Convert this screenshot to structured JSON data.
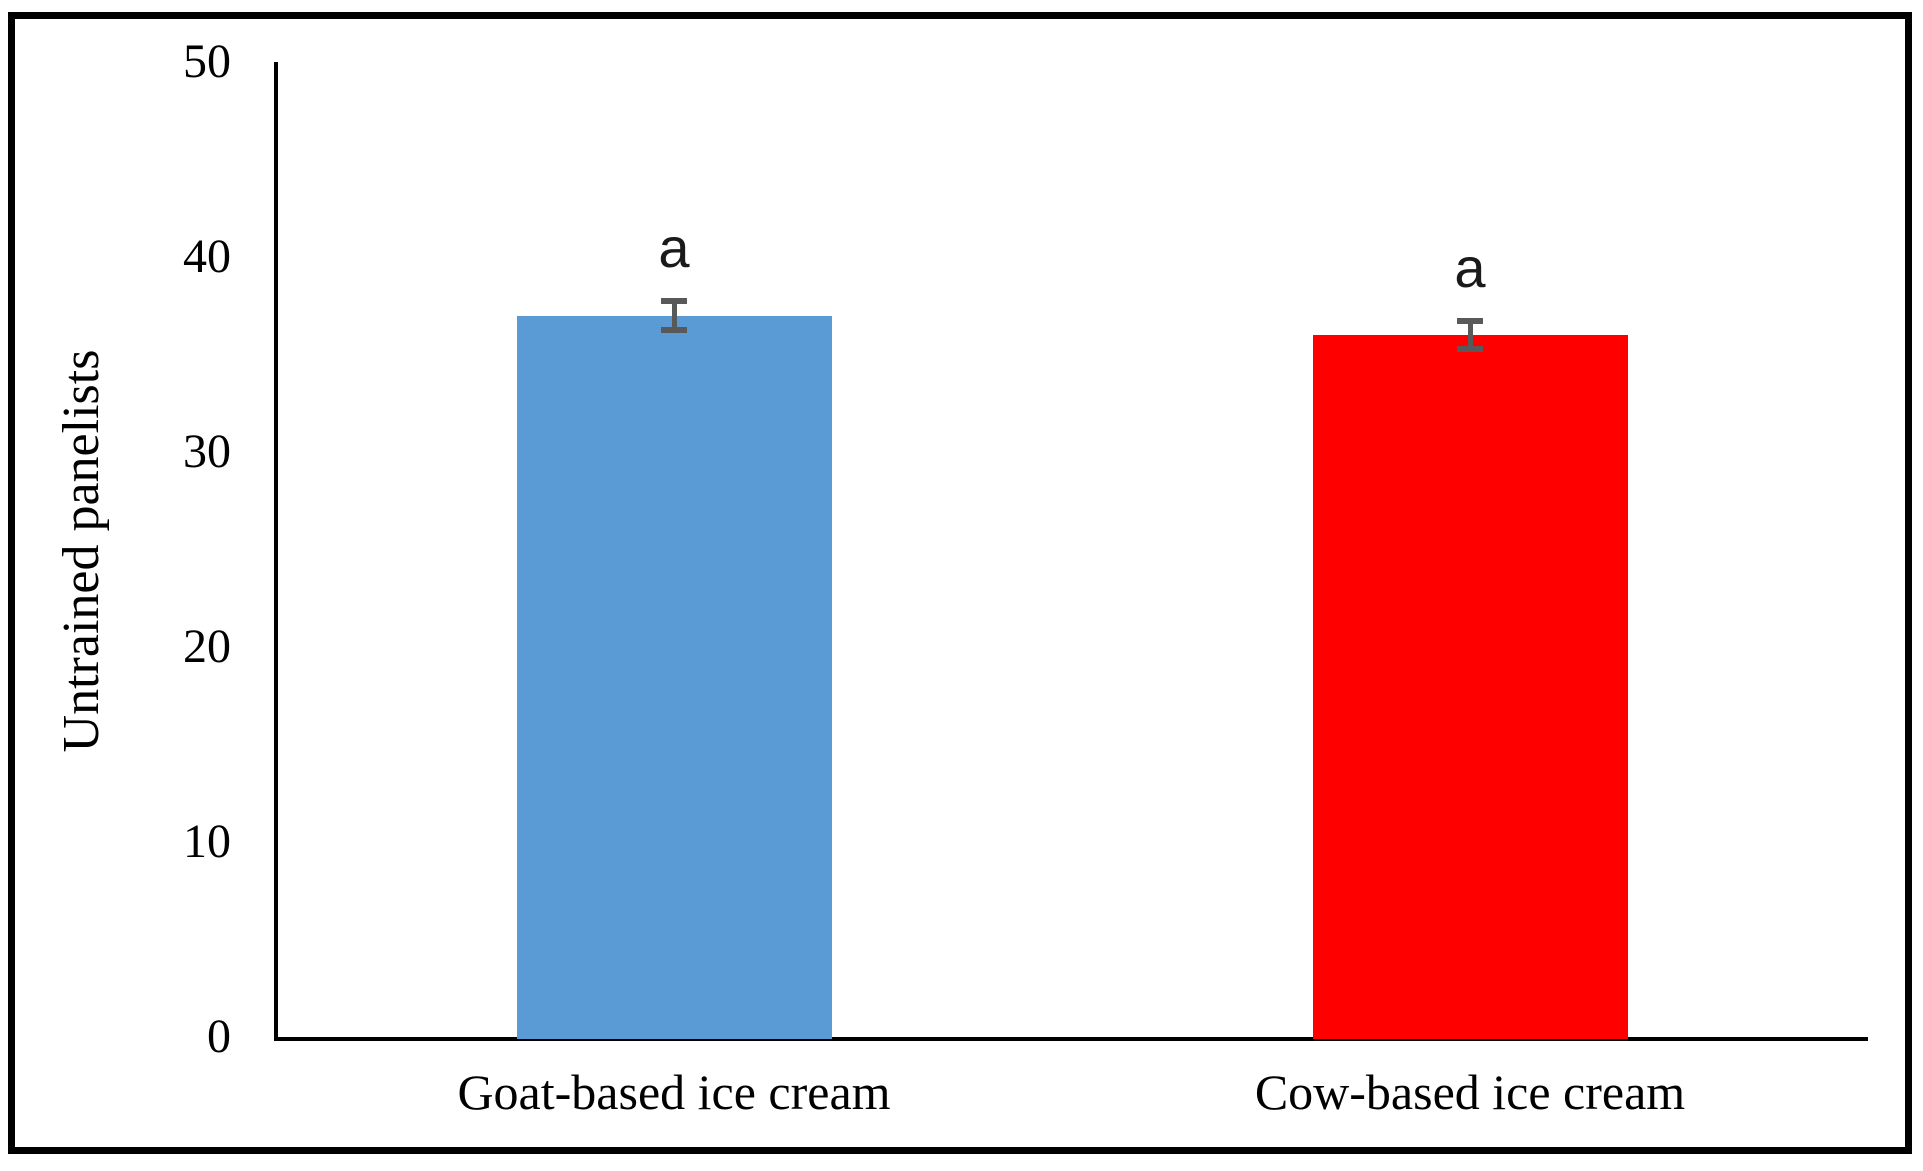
{
  "figure": {
    "background": "#ffffff",
    "border_color": "#000000"
  },
  "chart_data": {
    "type": "bar",
    "title": "",
    "xlabel": "",
    "ylabel": "Untrained panelists",
    "categories": [
      "Goat-based ice cream",
      "Cow-based ice cream"
    ],
    "values": [
      37,
      36
    ],
    "errors": [
      0.64,
      0.64
    ],
    "bar_labels": [
      "a",
      "a"
    ],
    "bar_colors": [
      "#5B9BD5",
      "#FF0000"
    ],
    "error_bar_color": "#595959",
    "yticks": [
      "0",
      "10",
      "20",
      "30",
      "40",
      "50"
    ],
    "ytick_values": [
      0,
      10,
      20,
      30,
      40,
      50
    ],
    "ylim": [
      0,
      50
    ],
    "grid": false,
    "legend_position": "none",
    "axis_color": "#000000"
  }
}
